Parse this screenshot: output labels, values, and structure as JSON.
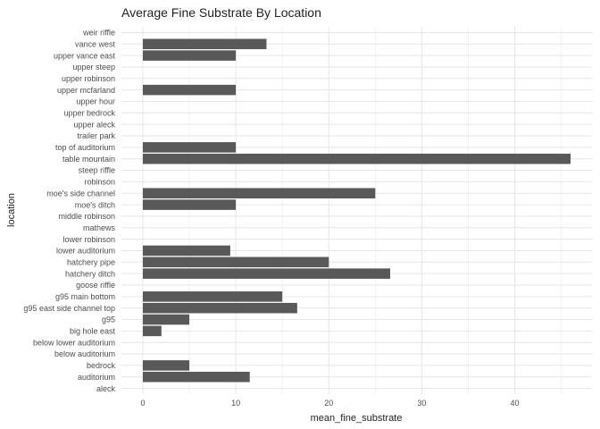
{
  "chart_data": {
    "type": "bar",
    "orientation": "horizontal",
    "title": "Average Fine Substrate By Location",
    "xlabel": "mean_fine_substrate",
    "ylabel": "location",
    "xlim": [
      -2.3,
      48.3
    ],
    "xticks": [
      0,
      10,
      20,
      30,
      40
    ],
    "grid": true,
    "bar_color": "#595959",
    "categories": [
      "aleck",
      "auditorium",
      "bedrock",
      "below auditorium",
      "below lower auditorium",
      "big hole east",
      "g95",
      "g95 east side channel top",
      "g95 main bottom",
      "goose riffle",
      "hatchery ditch",
      "hatchery pipe",
      "lower auditorium",
      "lower robinson",
      "mathews",
      "middle robinson",
      "moe's ditch",
      "moe's side channel",
      "robinson",
      "steep riffle",
      "table mountain",
      "top of auditorium",
      "trailer park",
      "upper aleck",
      "upper bedrock",
      "upper hour",
      "upper mcfarland",
      "upper robinson",
      "upper steep",
      "upper vance east",
      "vance west",
      "weir riffle"
    ],
    "values": [
      0,
      11.5,
      5,
      0,
      0,
      2,
      5,
      16.6,
      15,
      0,
      26.6,
      20,
      9.4,
      0,
      0,
      0,
      10,
      25,
      0,
      0,
      46,
      10,
      0,
      0,
      0,
      0,
      10,
      0,
      0,
      10,
      13.3,
      0
    ]
  }
}
